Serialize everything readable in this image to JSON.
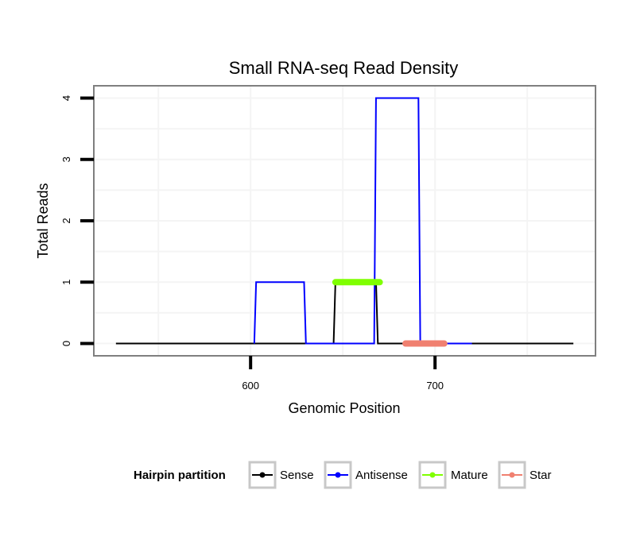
{
  "chart_data": {
    "type": "line",
    "title": "Small RNA-seq Read Density",
    "xlabel": "Genomic Position",
    "ylabel": "Total Reads",
    "xlim": [
      515,
      787
    ],
    "ylim": [
      -0.2,
      4.2
    ],
    "x_ticks": [
      600,
      700
    ],
    "y_ticks": [
      0,
      1,
      2,
      3,
      4
    ],
    "grid": true,
    "legend_position": "bottom",
    "legend_title": "Hairpin partition",
    "series": [
      {
        "name": "Sense",
        "color": "#000000",
        "x": [
          527,
          645,
          646,
          668,
          669,
          775
        ],
        "y": [
          0,
          0,
          1,
          1,
          0,
          0
        ]
      },
      {
        "name": "Antisense",
        "color": "#0000ff",
        "x": [
          602,
          603,
          629,
          630,
          667,
          668,
          691,
          692,
          720
        ],
        "y": [
          0,
          1,
          1,
          0,
          0,
          4,
          4,
          0,
          0
        ]
      },
      {
        "name": "Mature",
        "color": "#7fff00",
        "x": [
          646,
          670
        ],
        "y": [
          1,
          1
        ]
      },
      {
        "name": "Star",
        "color": "#f08070",
        "x": [
          684,
          705
        ],
        "y": [
          0,
          0
        ]
      }
    ]
  }
}
